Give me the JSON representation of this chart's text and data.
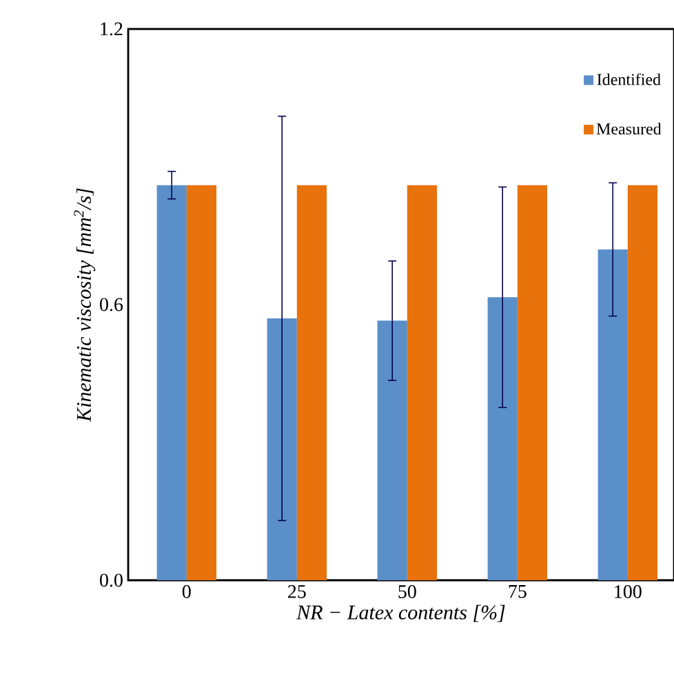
{
  "chart_data": {
    "type": "bar",
    "xlabel": "NR − Latex contents [%]",
    "ylabel": "Kinematic viscosity [mm$^{2}$/s]",
    "categories": [
      "0",
      "25",
      "50",
      "75",
      "100"
    ],
    "series": [
      {
        "name": "Identified",
        "color": "#5b8fc9",
        "values": [
          0.86,
          0.57,
          0.565,
          0.616,
          0.72
        ],
        "errors": [
          0.03,
          0.44,
          0.13,
          0.24,
          0.145
        ]
      },
      {
        "name": "Measured",
        "color": "#e8720c",
        "values": [
          0.86,
          0.86,
          0.86,
          0.86,
          0.86
        ]
      }
    ],
    "ylim": [
      0,
      1.2
    ],
    "yticks": [
      {
        "value": 0,
        "label": "0.0"
      },
      0.6,
      1.2
    ],
    "grid": false,
    "legend": "top right"
  }
}
